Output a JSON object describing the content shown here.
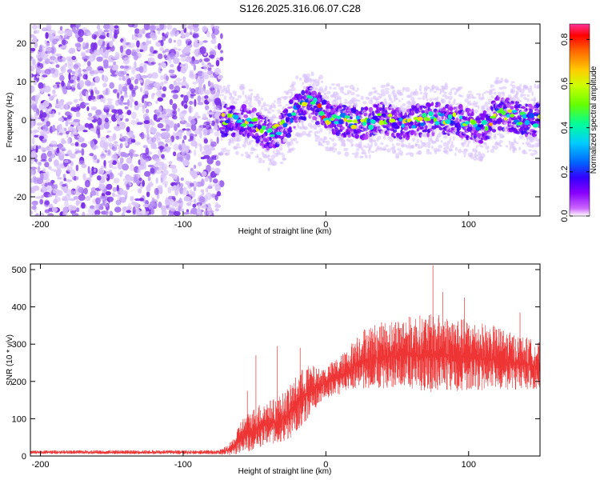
{
  "figure_title": "S126.2025.316.06.07.C28",
  "chart_data": [
    {
      "type": "heatmap",
      "title": "S126.2025.316.06.07.C28",
      "xlabel": "Height of straight line (km)",
      "ylabel": "Frequency (Hz)",
      "xlim": [
        -207,
        150
      ],
      "ylim": [
        -25,
        25
      ],
      "xticks": [
        -200,
        -100,
        0,
        100
      ],
      "yticks": [
        -20,
        -10,
        0,
        10,
        20
      ],
      "xtick_labels": [
        "-200",
        "-100",
        "0",
        "100"
      ],
      "ytick_labels": [
        "-20",
        "-10",
        "0",
        "10",
        "20"
      ],
      "noise_region_x": [
        -207,
        -73
      ],
      "signal_center_track": {
        "x": [
          -73,
          -60,
          -50,
          -40,
          -30,
          -20,
          -12,
          -5,
          0,
          10,
          20,
          30,
          40,
          50,
          60,
          70,
          80,
          90,
          100,
          110,
          120,
          130,
          140,
          150
        ],
        "y": [
          0,
          0,
          -1,
          -4,
          -2,
          3,
          5,
          3,
          1,
          0,
          -0.5,
          -1,
          1,
          -1,
          -0.5,
          0,
          0.5,
          0,
          -1,
          -2,
          2,
          1,
          0,
          0
        ]
      },
      "colorbar": {
        "label": "Normalized spectral amplitude",
        "ticks": [
          0.0,
          0.2,
          0.4,
          0.6,
          0.8
        ],
        "tick_labels": [
          "0.0",
          "0.2",
          "0.4",
          "0.6",
          "0.8"
        ],
        "range": [
          0,
          0.87
        ],
        "colors": [
          "#ffffff",
          "#cc66ff",
          "#8800ff",
          "#3300ff",
          "#0066ff",
          "#00ccff",
          "#00ff99",
          "#66ff00",
          "#ccff00",
          "#ffcc00",
          "#ff6600",
          "#ff0000",
          "#ff3399"
        ]
      },
      "colors": {
        "noise_light": "#d9c3fb",
        "noise_mid": "#b48cf6",
        "noise_dark": "#7a2ee8"
      }
    },
    {
      "type": "line",
      "xlabel": "Height of straight line (km)",
      "ylabel": "SNR (10 * v/v)",
      "xlim": [
        -207,
        150
      ],
      "ylim": [
        0,
        515
      ],
      "xticks": [
        -200,
        -100,
        0,
        100
      ],
      "yticks": [
        0,
        100,
        200,
        300,
        400,
        500
      ],
      "xtick_labels": [
        "-200",
        "-100",
        "0",
        "100"
      ],
      "ytick_labels": [
        "0",
        "100",
        "200",
        "300",
        "400",
        "500"
      ],
      "series": [
        {
          "name": "SNR",
          "color": "#ee3333",
          "envelope": {
            "x": [
              -207,
              -130,
              -75,
              -68,
              -63,
              -60,
              -55,
              -50,
              -45,
              -40,
              -35,
              -30,
              -25,
              -20,
              -15,
              -10,
              -5,
              0,
              5,
              10,
              15,
              20,
              25,
              30,
              40,
              50,
              60,
              70,
              75,
              80,
              90,
              100,
              110,
              120,
              130,
              140,
              150
            ],
            "mean": [
              10,
              10,
              10,
              15,
              30,
              50,
              60,
              70,
              80,
              85,
              90,
              100,
              115,
              140,
              160,
              175,
              185,
              195,
              205,
              215,
              225,
              245,
              255,
              260,
              265,
              270,
              272,
              270,
              270,
              270,
              268,
              265,
              262,
              258,
              250,
              245,
              240
            ],
            "amplitude": [
              5,
              6,
              6,
              15,
              30,
              45,
              55,
              60,
              65,
              65,
              65,
              70,
              75,
              80,
              80,
              70,
              50,
              45,
              50,
              55,
              60,
              75,
              85,
              90,
              95,
              100,
              105,
              110,
              110,
              110,
              105,
              100,
              95,
              90,
              80,
              75,
              65
            ]
          },
          "peaks": [
            {
              "x": 75,
              "y": 512
            },
            {
              "x": 82,
              "y": 440
            },
            {
              "x": 97,
              "y": 425
            },
            {
              "x": -34,
              "y": 295
            },
            {
              "x": -18,
              "y": 290
            },
            {
              "x": -49,
              "y": 270
            },
            {
              "x": -55,
              "y": 175
            },
            {
              "x": 136,
              "y": 385
            }
          ]
        }
      ]
    }
  ]
}
